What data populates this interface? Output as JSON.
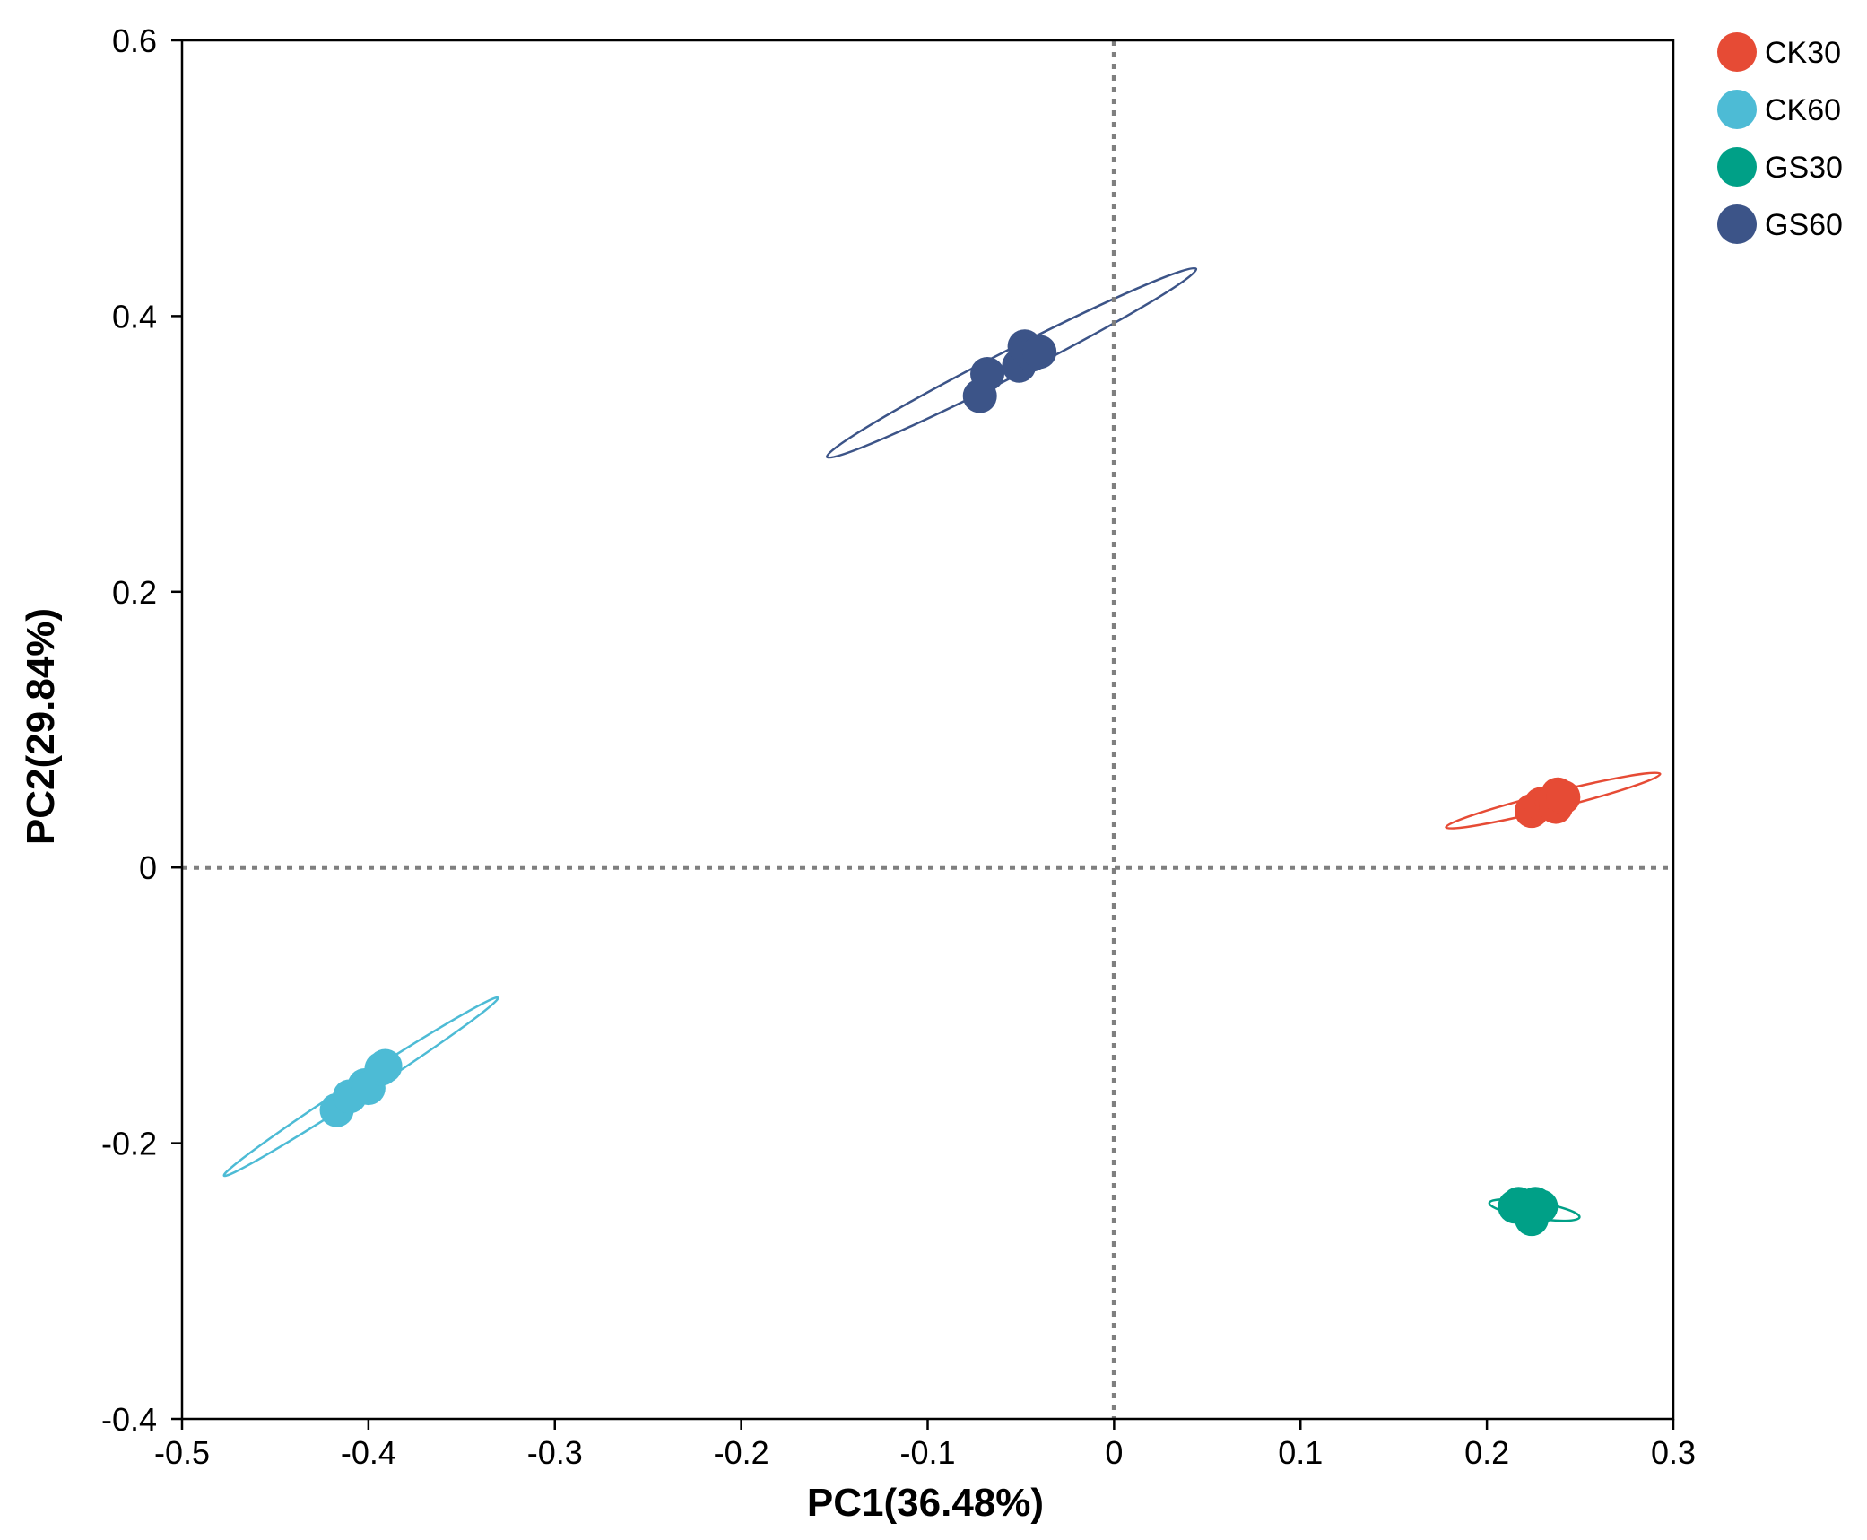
{
  "chart_data": {
    "type": "scatter",
    "title": "",
    "xlabel": "PC1(36.48%)",
    "ylabel": "PC2(29.84%)",
    "xlim": [
      -0.5,
      0.3
    ],
    "ylim": [
      -0.4,
      0.6
    ],
    "xticks": [
      -0.5,
      -0.4,
      -0.3,
      -0.2,
      -0.1,
      0,
      0.1,
      0.2,
      0.3
    ],
    "xtick_labels": [
      "-0.5",
      "-0.4",
      "-0.3",
      "-0.2",
      "-0.1",
      "0",
      "0.1",
      "0.2",
      "0.3"
    ],
    "yticks": [
      -0.4,
      -0.2,
      0,
      0.2,
      0.4,
      0.6
    ],
    "ytick_labels": [
      "-0.4",
      "-0.2",
      "0",
      "0.2",
      "0.4",
      "0.6"
    ],
    "reference_lines": {
      "x": 0,
      "y": 0,
      "style": "dotted",
      "color": "#7f7f7f"
    },
    "grid": false,
    "legend_position": "top-right",
    "series": [
      {
        "name": "CK30",
        "color": "#e64b35",
        "points": [
          {
            "x": 0.224,
            "y": 0.041
          },
          {
            "x": 0.229,
            "y": 0.046
          },
          {
            "x": 0.235,
            "y": 0.047
          },
          {
            "x": 0.237,
            "y": 0.044
          },
          {
            "x": 0.238,
            "y": 0.053
          },
          {
            "x": 0.241,
            "y": 0.051
          }
        ],
        "ellipse": {
          "cx": 0.2355,
          "cy": 0.0485,
          "rx": 0.0592,
          "ry": 0.0036,
          "angle_deg": 14
        }
      },
      {
        "name": "CK60",
        "color": "#4dbbd5",
        "points": [
          {
            "x": -0.417,
            "y": -0.176
          },
          {
            "x": -0.41,
            "y": -0.166
          },
          {
            "x": -0.402,
            "y": -0.158
          },
          {
            "x": -0.4,
            "y": -0.16
          },
          {
            "x": -0.393,
            "y": -0.146
          },
          {
            "x": -0.391,
            "y": -0.144
          }
        ],
        "ellipse": {
          "cx": -0.404,
          "cy": -0.159,
          "rx": 0.0876,
          "ry": 0.0036,
          "angle_deg": 33
        }
      },
      {
        "name": "GS30",
        "color": "#00a087",
        "points": [
          {
            "x": 0.215,
            "y": -0.246
          },
          {
            "x": 0.217,
            "y": -0.244
          },
          {
            "x": 0.221,
            "y": -0.246
          },
          {
            "x": 0.224,
            "y": -0.255
          },
          {
            "x": 0.226,
            "y": -0.244
          },
          {
            "x": 0.229,
            "y": -0.246
          }
        ],
        "ellipse": {
          "cx": 0.2255,
          "cy": -0.2485,
          "rx": 0.0245,
          "ry": 0.0035,
          "angle_deg": -9
        }
      },
      {
        "name": "GS60",
        "color": "#3c5488",
        "points": [
          {
            "x": -0.072,
            "y": 0.342
          },
          {
            "x": -0.068,
            "y": 0.358
          },
          {
            "x": -0.051,
            "y": 0.364
          },
          {
            "x": -0.048,
            "y": 0.378
          },
          {
            "x": -0.044,
            "y": 0.372
          },
          {
            "x": -0.04,
            "y": 0.374
          }
        ],
        "ellipse": {
          "cx": -0.055,
          "cy": 0.366,
          "rx": 0.1111,
          "ry": 0.0095,
          "angle_deg": 27
        }
      }
    ]
  }
}
